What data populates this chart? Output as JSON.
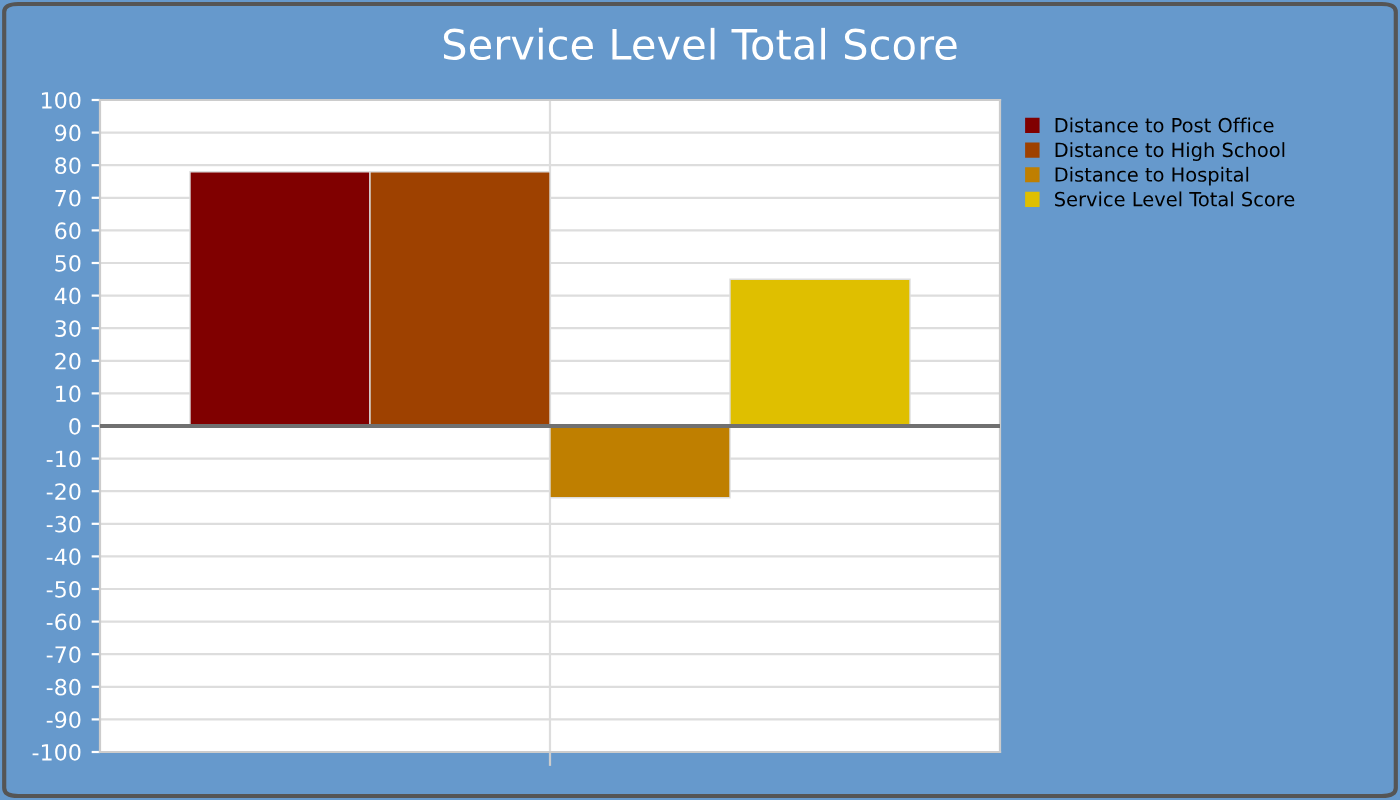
{
  "chart_data": {
    "type": "bar",
    "title": "Service Level Total Score",
    "categories": [
      null
    ],
    "series": [
      {
        "name": "Distance to Post Office",
        "color": "#800000",
        "values": [
          78
        ]
      },
      {
        "name": "Distance to High School",
        "color": "#9e4100",
        "values": [
          78
        ]
      },
      {
        "name": "Distance to Hospital",
        "color": "#bf7f00",
        "values": [
          -22
        ]
      },
      {
        "name": "Service Level Total Score",
        "color": "#dfbf00",
        "values": [
          45
        ]
      }
    ],
    "ylim": [
      -100,
      100
    ],
    "yticks": [
      -100,
      -90,
      -80,
      -70,
      -60,
      -50,
      -40,
      -30,
      -20,
      -10,
      0,
      10,
      20,
      30,
      40,
      50,
      60,
      70,
      80,
      90,
      100
    ],
    "grid": true,
    "legend": "right"
  }
}
